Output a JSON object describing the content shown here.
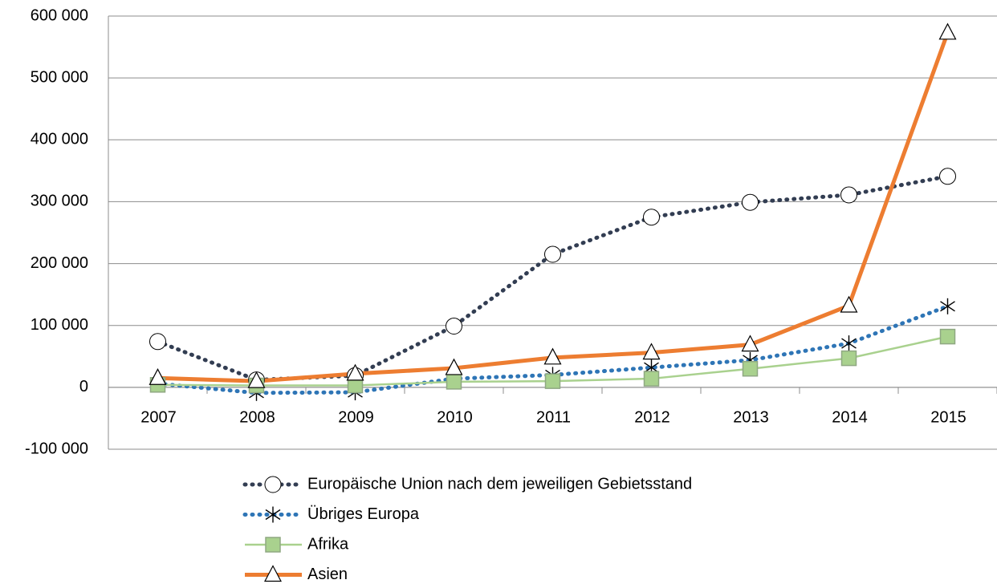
{
  "chart_data": {
    "type": "line",
    "categories": [
      "2007",
      "2008",
      "2009",
      "2010",
      "2011",
      "2012",
      "2013",
      "2014",
      "2015"
    ],
    "series": [
      {
        "name": "Europäische Union  nach dem jeweiligen Gebietsstand",
        "color": "#323d52",
        "dash": "dotted",
        "marker": "circle",
        "values": [
          74000,
          12000,
          19000,
          99000,
          215000,
          275000,
          299000,
          311000,
          341000
        ]
      },
      {
        "name": "Übriges Europa",
        "color": "#2e75b6",
        "dash": "dotted",
        "marker": "asterisk",
        "values": [
          6000,
          -9000,
          -8000,
          14000,
          20000,
          32000,
          44000,
          71000,
          131000
        ]
      },
      {
        "name": "Afrika",
        "color": "#a9d18e",
        "dash": "solid",
        "marker": "square",
        "values": [
          4000,
          3000,
          3000,
          9000,
          10000,
          14000,
          30000,
          47000,
          82000
        ]
      },
      {
        "name": "Asien",
        "color": "#ed7d31",
        "dash": "solid",
        "marker": "triangle",
        "values": [
          15000,
          10000,
          22000,
          31000,
          48000,
          56000,
          69000,
          132000,
          573000
        ]
      }
    ],
    "ylim": [
      -100000,
      600000
    ],
    "yticks": [
      {
        "value": -100000,
        "label": "-100 000"
      },
      0,
      {
        "value": 100000,
        "label": "100 000"
      },
      {
        "value": 200000,
        "label": "200 000"
      },
      {
        "value": 300000,
        "label": "300 000"
      },
      {
        "value": 400000,
        "label": "400 000"
      },
      {
        "value": 500000,
        "label": "500 000"
      },
      {
        "value": 600000,
        "label": "600 000"
      }
    ],
    "grid": true,
    "legend": "bottom"
  }
}
